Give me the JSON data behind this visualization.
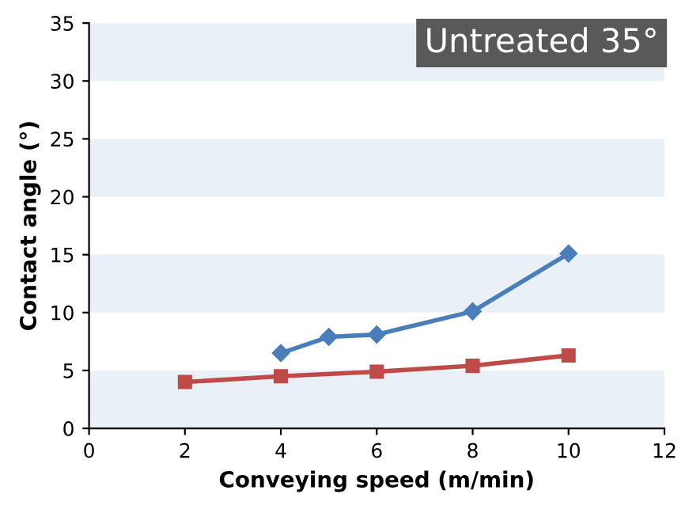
{
  "chart_data": {
    "type": "line",
    "xlabel": "Conveying speed (m/min)",
    "ylabel": "Contact angle (°)",
    "annotations": [
      "Untreated 35°"
    ],
    "xlim": [
      0,
      12
    ],
    "xticks": [
      0,
      2,
      4,
      6,
      8,
      10,
      12
    ],
    "ylim": [
      0,
      35
    ],
    "yticks": [
      0,
      5,
      10,
      15,
      20,
      25,
      30,
      35
    ],
    "series": [
      {
        "color": "#4a7ebb",
        "marker": "diamond",
        "x": [
          4,
          5,
          6,
          8,
          10
        ],
        "values": [
          6.5,
          7.9,
          8.1,
          10.1,
          15.1
        ]
      },
      {
        "color": "#be4b48",
        "marker": "square",
        "x": [
          2,
          4,
          6,
          8,
          10
        ],
        "values": [
          4.0,
          4.5,
          4.9,
          5.4,
          6.3
        ]
      }
    ],
    "bands": [
      {
        "axis": "y",
        "from": 0,
        "to": 5,
        "color": "#eaf0f8"
      },
      {
        "axis": "y",
        "from": 10,
        "to": 15,
        "color": "#eaf0f8"
      },
      {
        "axis": "y",
        "from": 20,
        "to": 25,
        "color": "#eaf0f8"
      },
      {
        "axis": "y",
        "from": 30,
        "to": 35,
        "color": "#eaf0f8"
      }
    ],
    "grid": false,
    "legend": false
  }
}
